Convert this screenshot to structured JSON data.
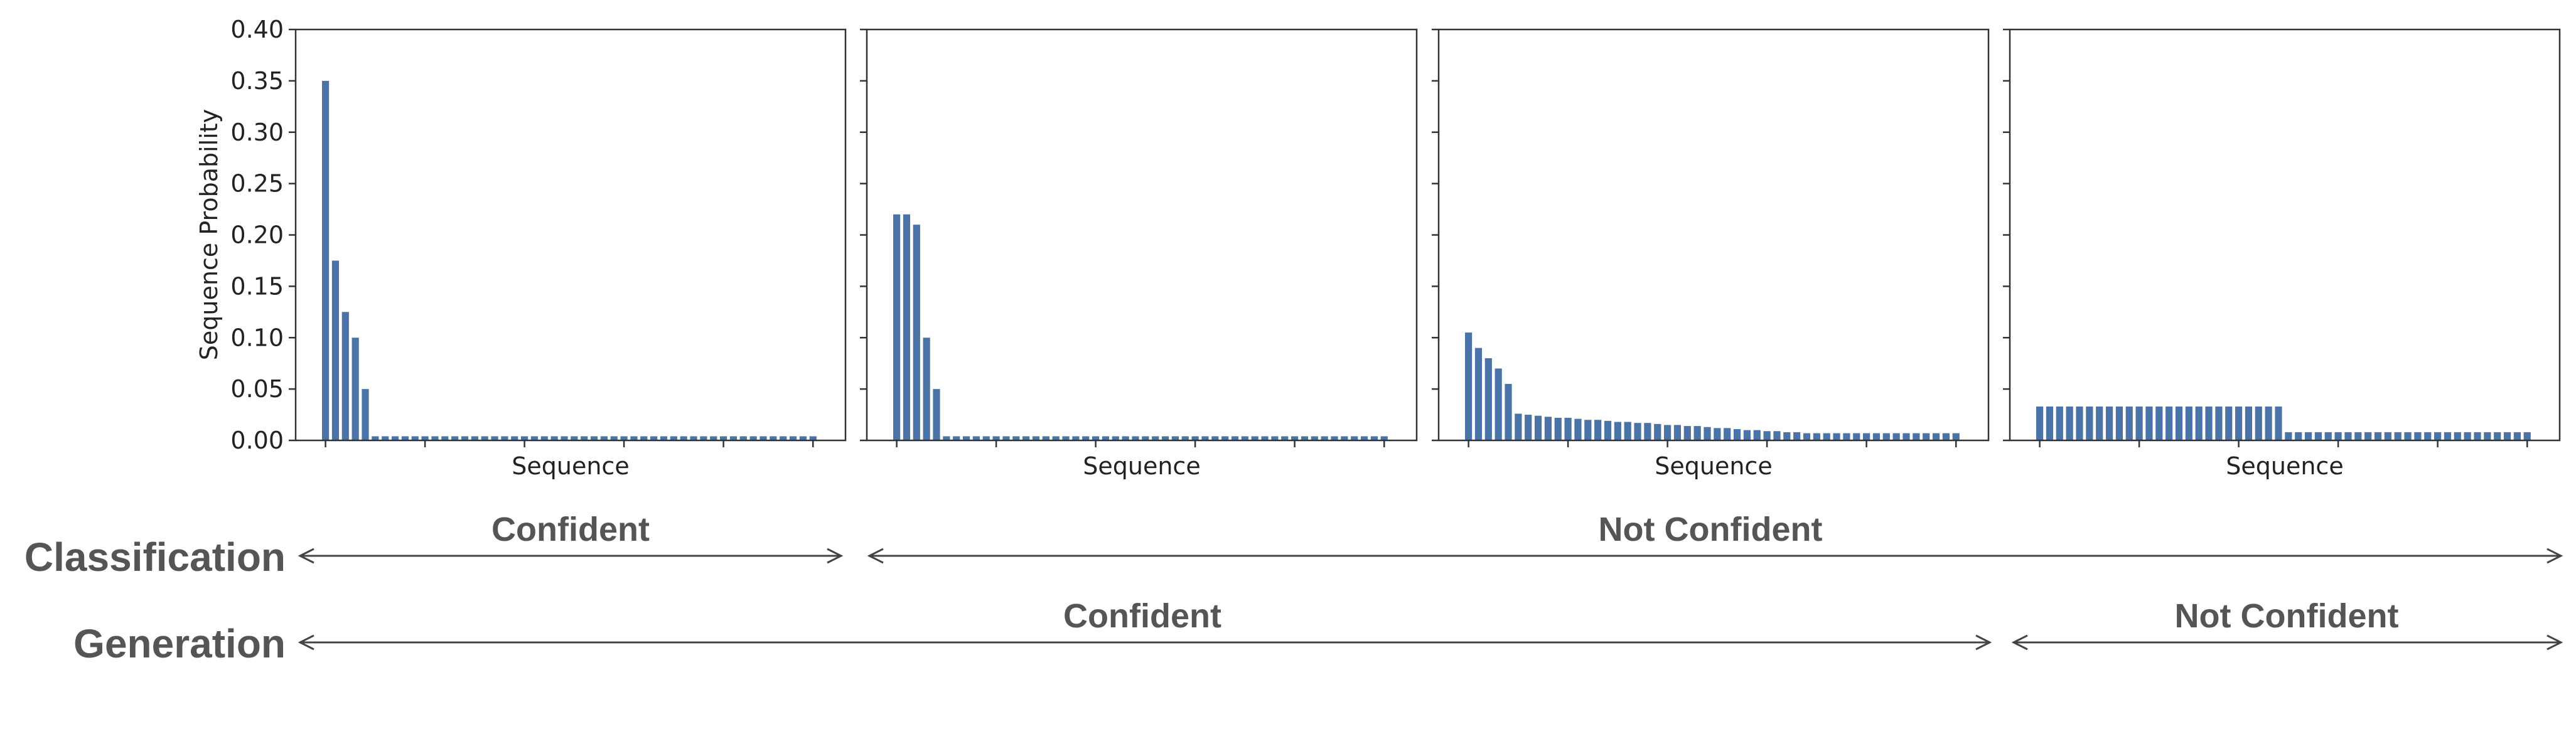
{
  "chart_data": [
    {
      "type": "bar",
      "title": "",
      "xlabel": "Sequence",
      "ylabel": "Sequence Probability",
      "ylim": [
        0,
        0.4
      ],
      "yticks": [
        "0.00",
        "0.05",
        "0.10",
        "0.15",
        "0.20",
        "0.25",
        "0.30",
        "0.35",
        "0.40"
      ],
      "bar_color": "#4a74a8",
      "values": [
        0.35,
        0.175,
        0.125,
        0.1,
        0.05,
        0.004,
        0.004,
        0.004,
        0.004,
        0.004,
        0.004,
        0.004,
        0.004,
        0.004,
        0.004,
        0.004,
        0.004,
        0.004,
        0.004,
        0.004,
        0.004,
        0.004,
        0.004,
        0.004,
        0.004,
        0.004,
        0.004,
        0.004,
        0.004,
        0.004,
        0.004,
        0.004,
        0.004,
        0.004,
        0.004,
        0.004,
        0.004,
        0.004,
        0.004,
        0.004,
        0.004,
        0.004,
        0.004,
        0.004,
        0.004,
        0.004,
        0.004,
        0.004,
        0.004,
        0.004
      ]
    },
    {
      "type": "bar",
      "title": "",
      "xlabel": "Sequence",
      "ylabel": "",
      "ylim": [
        0,
        0.4
      ],
      "bar_color": "#4a74a8",
      "values": [
        0.22,
        0.22,
        0.21,
        0.1,
        0.05,
        0.004,
        0.004,
        0.004,
        0.004,
        0.004,
        0.004,
        0.004,
        0.004,
        0.004,
        0.004,
        0.004,
        0.004,
        0.004,
        0.004,
        0.004,
        0.004,
        0.004,
        0.004,
        0.004,
        0.004,
        0.004,
        0.004,
        0.004,
        0.004,
        0.004,
        0.004,
        0.004,
        0.004,
        0.004,
        0.004,
        0.004,
        0.004,
        0.004,
        0.004,
        0.004,
        0.004,
        0.004,
        0.004,
        0.004,
        0.004,
        0.004,
        0.004,
        0.004,
        0.004,
        0.004
      ]
    },
    {
      "type": "bar",
      "title": "",
      "xlabel": "Sequence",
      "ylabel": "",
      "ylim": [
        0,
        0.4
      ],
      "bar_color": "#4a74a8",
      "values": [
        0.105,
        0.09,
        0.08,
        0.07,
        0.055,
        0.026,
        0.025,
        0.024,
        0.023,
        0.022,
        0.022,
        0.021,
        0.02,
        0.02,
        0.019,
        0.018,
        0.018,
        0.017,
        0.017,
        0.016,
        0.015,
        0.015,
        0.014,
        0.014,
        0.013,
        0.012,
        0.012,
        0.011,
        0.01,
        0.01,
        0.009,
        0.009,
        0.008,
        0.008,
        0.007,
        0.007,
        0.007,
        0.007,
        0.007,
        0.007,
        0.007,
        0.007,
        0.007,
        0.007,
        0.007,
        0.007,
        0.007,
        0.007,
        0.007,
        0.007
      ]
    },
    {
      "type": "bar",
      "title": "",
      "xlabel": "Sequence",
      "ylabel": "",
      "ylim": [
        0,
        0.4
      ],
      "bar_color": "#4a74a8",
      "values": [
        0.033,
        0.033,
        0.033,
        0.033,
        0.033,
        0.033,
        0.033,
        0.033,
        0.033,
        0.033,
        0.033,
        0.033,
        0.033,
        0.033,
        0.033,
        0.033,
        0.033,
        0.033,
        0.033,
        0.033,
        0.033,
        0.033,
        0.033,
        0.033,
        0.033,
        0.008,
        0.008,
        0.008,
        0.008,
        0.008,
        0.008,
        0.008,
        0.008,
        0.008,
        0.008,
        0.008,
        0.008,
        0.008,
        0.008,
        0.008,
        0.008,
        0.008,
        0.008,
        0.008,
        0.008,
        0.008,
        0.008,
        0.008,
        0.008,
        0.008
      ]
    }
  ],
  "annotations": {
    "classification": {
      "label": "Classification",
      "spans": [
        {
          "label": "Confident",
          "from_panel": 0,
          "to_panel": 0
        },
        {
          "label": "Not Confident",
          "from_panel": 1,
          "to_panel": 3
        }
      ]
    },
    "generation": {
      "label": "Generation",
      "spans": [
        {
          "label": "Confident",
          "from_panel": 0,
          "to_panel": 2
        },
        {
          "label": "Not Confident",
          "from_panel": 3,
          "to_panel": 3
        }
      ]
    },
    "text_color": "#555555",
    "arrow_color": "#444444"
  }
}
